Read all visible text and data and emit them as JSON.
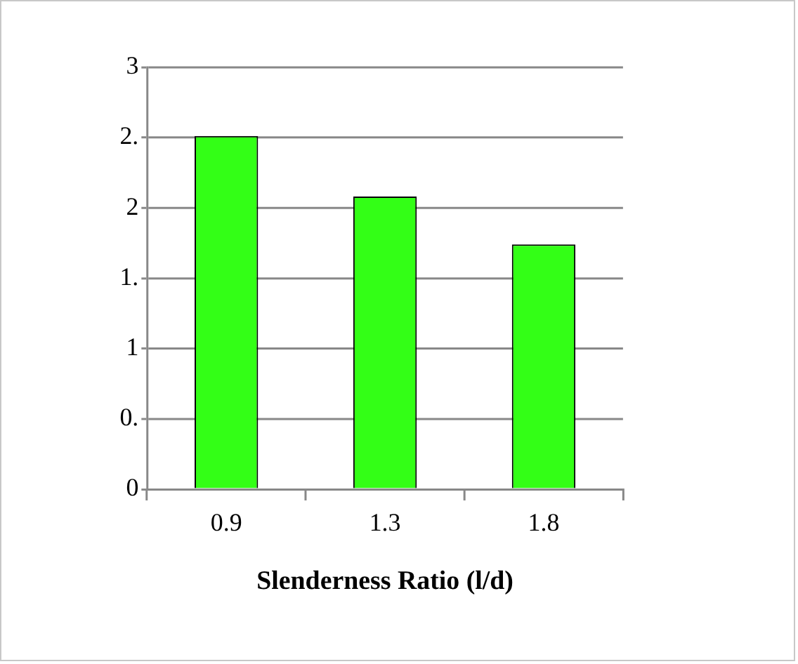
{
  "chart_data": {
    "type": "bar",
    "xlabel": "Slenderness Ratio (l/d)",
    "categories": [
      "0.9",
      "1.3",
      "1.8"
    ],
    "values": [
      2.51,
      2.08,
      1.74
    ],
    "color": "#33ff16",
    "ylim": [
      0,
      3
    ],
    "yticks": [
      {
        "value": 0,
        "label": "0"
      },
      {
        "value": 0.5,
        "label": "0."
      },
      {
        "value": 1,
        "label": "1"
      },
      {
        "value": 1.5,
        "label": "1."
      },
      {
        "value": 2,
        "label": "2"
      },
      {
        "value": 2.5,
        "label": "2."
      },
      {
        "value": 3,
        "label": "3"
      }
    ],
    "grid": "y",
    "legend": false
  }
}
